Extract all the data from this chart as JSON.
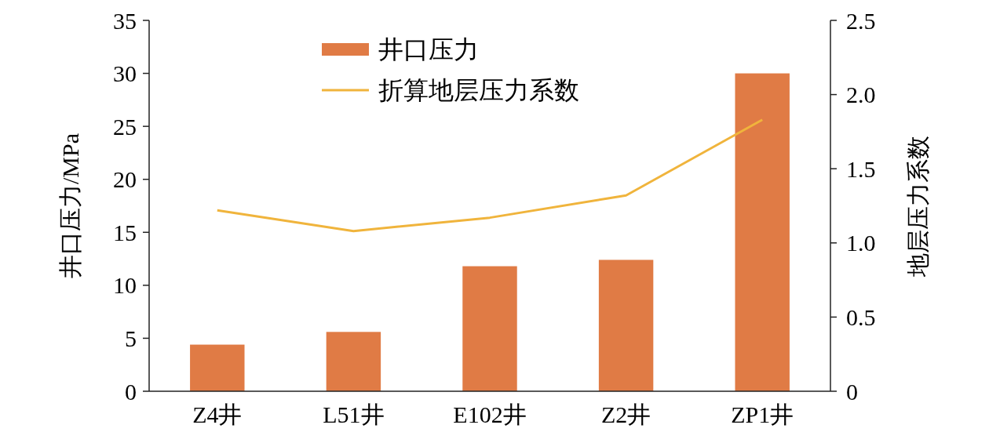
{
  "chart_data": {
    "type": "bar",
    "categories": [
      "Z4井",
      "L51井",
      "E102井",
      "Z2井",
      "ZP1井"
    ],
    "ylabel": "井口压力/MPa",
    "y2label": "地层压力系数",
    "ylim": [
      0,
      35
    ],
    "yticks": [
      0,
      5,
      10,
      15,
      20,
      25,
      30,
      35
    ],
    "y2lim": [
      0,
      2.5
    ],
    "y2ticks": [
      0,
      {
        "value": 0.5,
        "label": "0.5"
      },
      {
        "value": 1,
        "label": "1.0"
      },
      {
        "value": 1.5,
        "label": "1.5"
      },
      {
        "value": 2,
        "label": "2.0"
      },
      {
        "value": 2.5,
        "label": "2.5"
      }
    ],
    "series": [
      {
        "name": "井口压力",
        "color": "#e07b45",
        "values": [
          4.4,
          5.6,
          11.8,
          12.4,
          30
        ]
      },
      {
        "name": "折算地层压力系数",
        "type": "line",
        "axis": "y2",
        "color": "#f0b43c",
        "values": [
          1.22,
          1.08,
          1.17,
          1.32,
          1.83
        ]
      }
    ],
    "legend": "top",
    "grid": false
  }
}
